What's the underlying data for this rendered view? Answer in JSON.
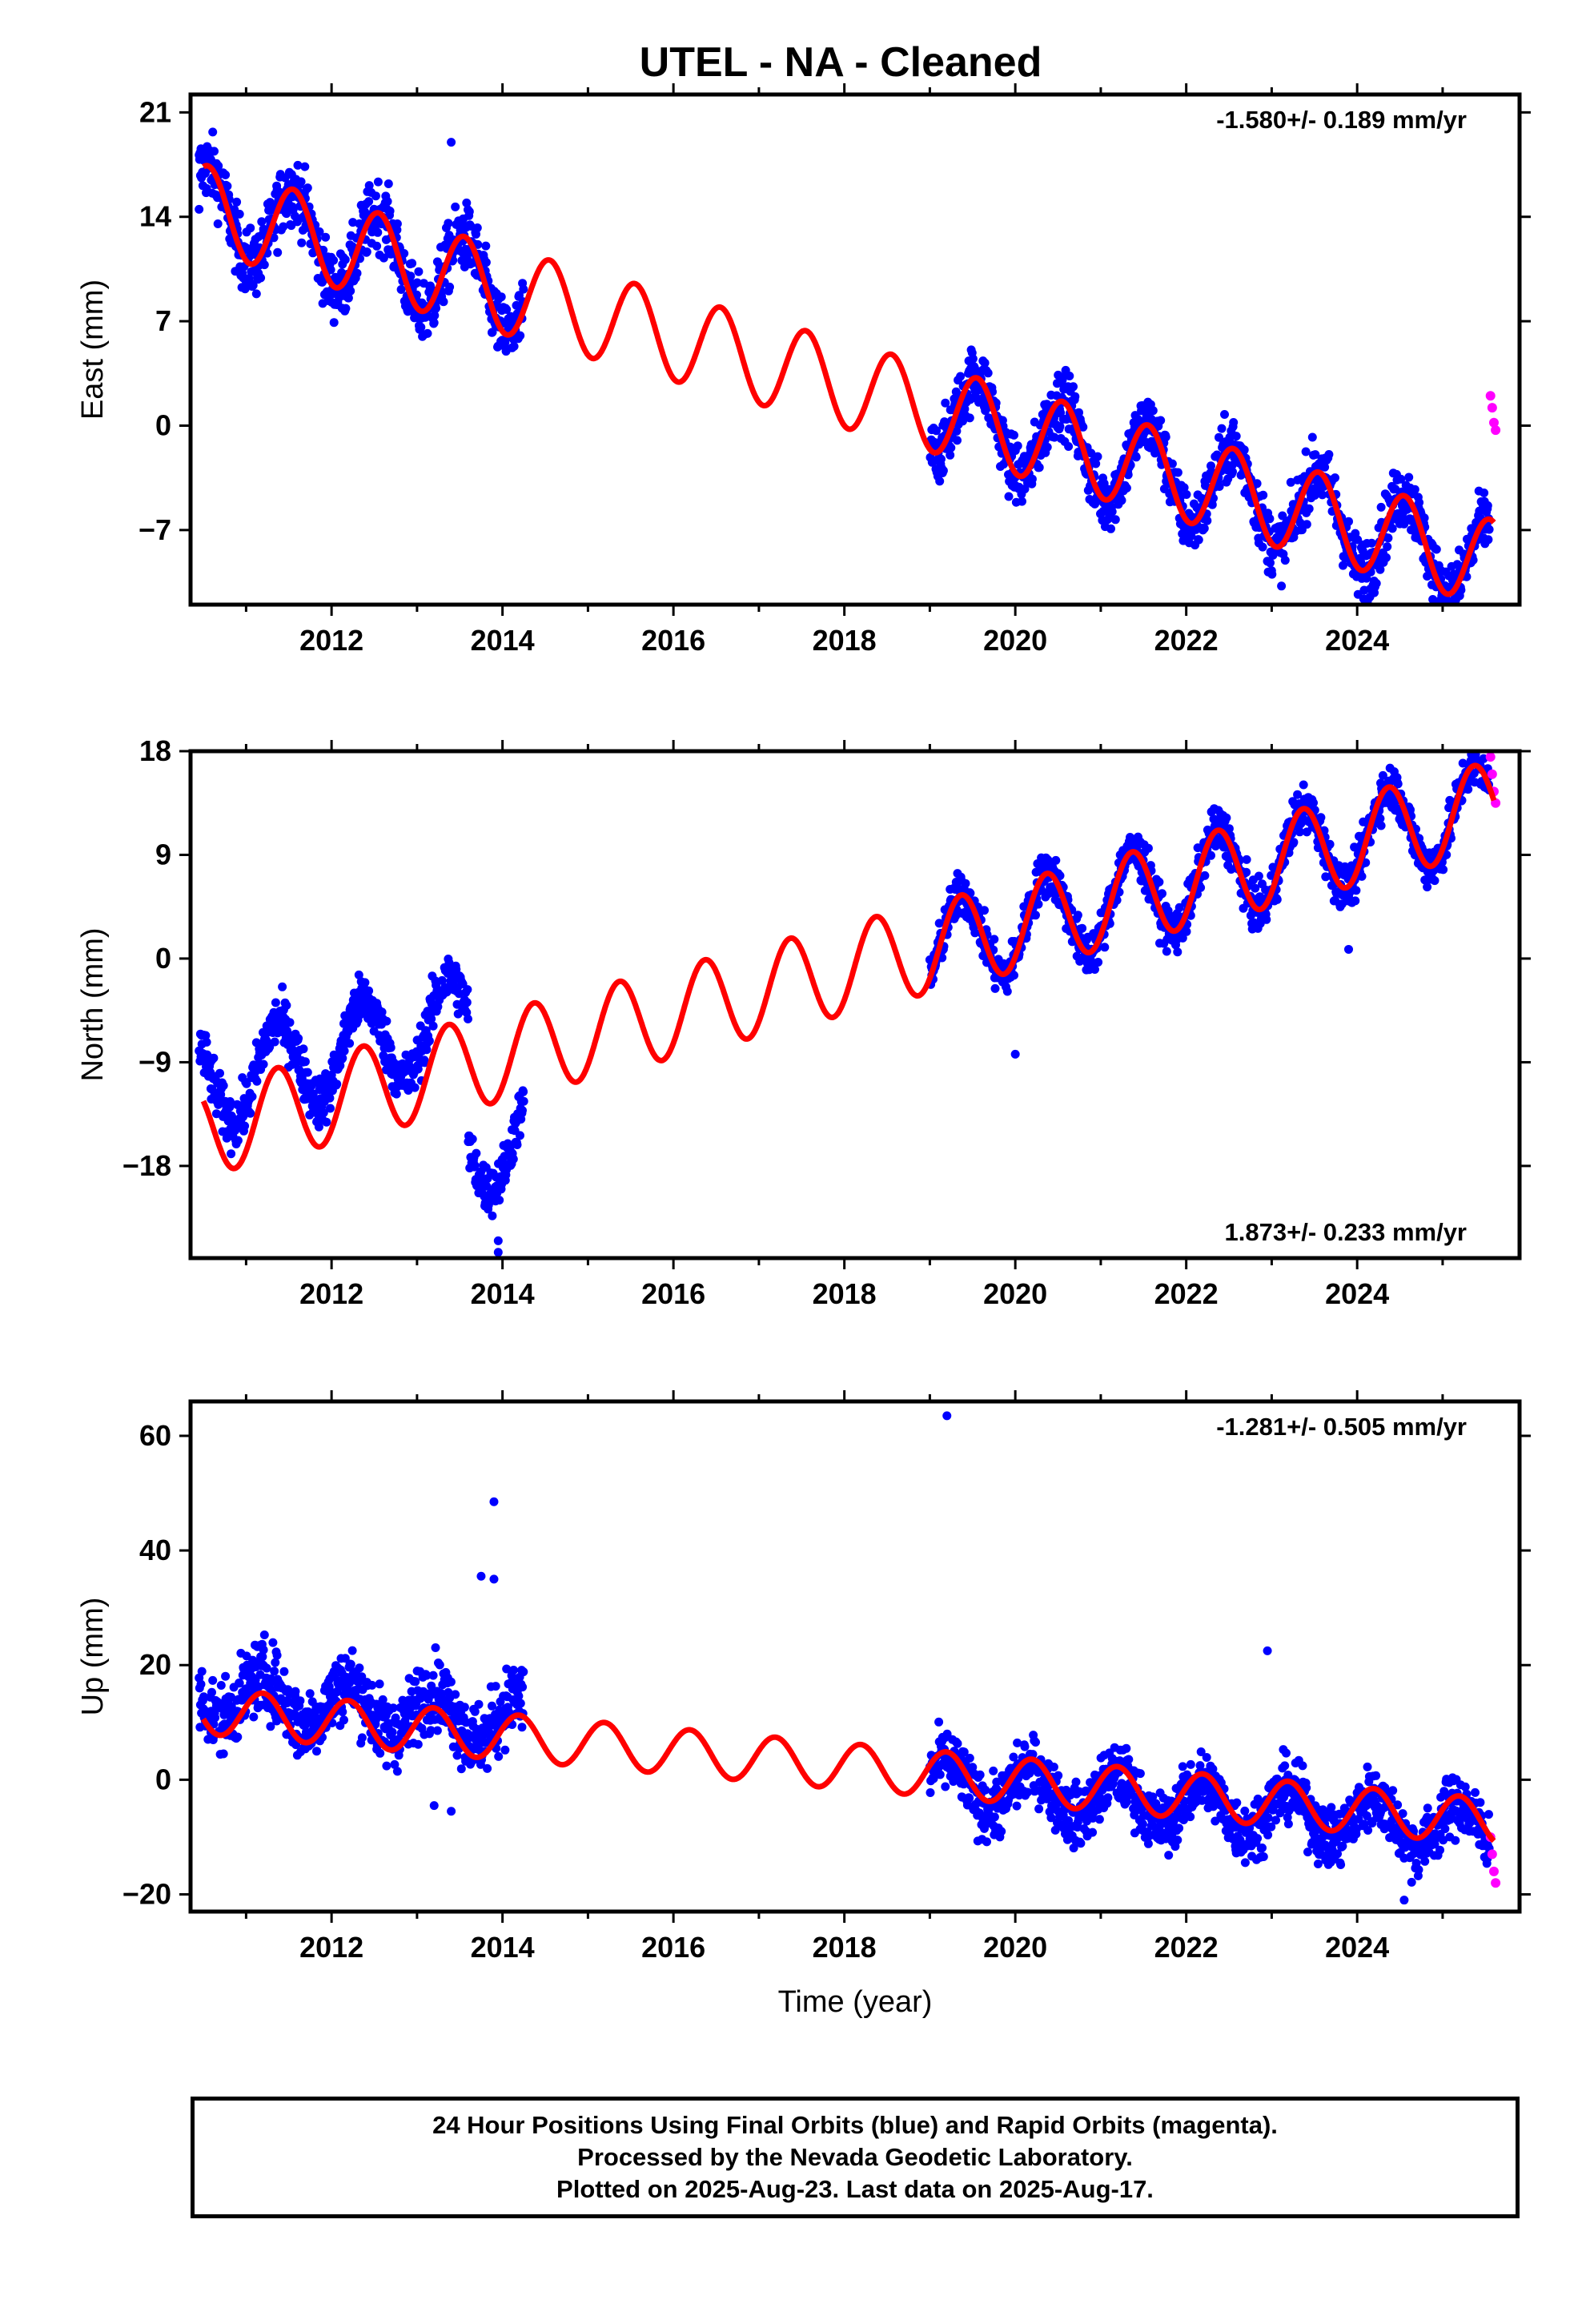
{
  "title": "UTEL  - NA - Cleaned",
  "colors": {
    "final": "#0000ff",
    "rapid": "#ff00ff",
    "model": "#ff0000",
    "axis": "#000000"
  },
  "chart_data": [
    {
      "type": "scatter",
      "panel": "east",
      "ylabel": "East (mm)",
      "xlabel": "",
      "xlim": [
        2010.35,
        2025.9
      ],
      "ylim": [
        -12,
        22.2
      ],
      "yticks": [
        21,
        14,
        7,
        0,
        -7
      ],
      "xticks": [
        2012,
        2014,
        2016,
        2018,
        2020,
        2022,
        2024
      ],
      "rate_label": "-1.580+/- 0.189 mm/yr",
      "rate_position": "top-right",
      "model": {
        "name": "model",
        "offset": 14.6,
        "t0": 2010.5,
        "rate": -1.58,
        "amplitude": 2.9,
        "phase": 1.25,
        "step_at": 2019.0,
        "step": 0.0
      },
      "segments": [
        {
          "series": "final",
          "start": 2010.45,
          "end": 2014.25,
          "scatter": 1.6
        },
        {
          "series": "final",
          "start": 2019.0,
          "end": 2025.55,
          "scatter": 1.5
        }
      ],
      "rapid_points": {
        "x": [
          2025.56,
          2025.58,
          2025.6,
          2025.62
        ],
        "y": [
          2.0,
          1.2,
          0.2,
          -0.3
        ]
      },
      "outliers": {
        "x": [
          2010.45,
          2013.4,
          2024.2,
          2025.2
        ],
        "y": [
          14.5,
          19.0,
          -11.2,
          -11.4
        ]
      }
    },
    {
      "type": "scatter",
      "panel": "north",
      "ylabel": "North (mm)",
      "xlabel": "",
      "xlim": [
        2010.35,
        2025.9
      ],
      "ylim": [
        -26,
        18
      ],
      "yticks": [
        18,
        9,
        0,
        -9,
        -18
      ],
      "xticks": [
        2012,
        2014,
        2016,
        2018,
        2020,
        2022,
        2024
      ],
      "rate_label": "1.873+/- 0.233 mm/yr",
      "rate_position": "bottom-right",
      "model": {
        "name": "model",
        "offset": -15.0,
        "t0": 2010.5,
        "rate": 1.873,
        "amplitude": 3.9,
        "phase": 2.4,
        "step_at": 2019.0,
        "step": 0.0
      },
      "segments": [
        {
          "series": "final",
          "start": 2010.45,
          "end": 2013.6,
          "scatter": 1.6,
          "shift": 4.0
        },
        {
          "series": "final",
          "start": 2013.6,
          "end": 2014.25,
          "scatter": 1.5,
          "shift": -7.5
        },
        {
          "series": "final",
          "start": 2019.0,
          "end": 2025.55,
          "scatter": 1.4,
          "shift": 0.0
        }
      ],
      "rapid_points": {
        "x": [
          2025.56,
          2025.58,
          2025.6,
          2025.62
        ],
        "y": [
          17.5,
          16.0,
          14.5,
          13.5
        ]
      },
      "outliers": {
        "x": [
          2013.95,
          2013.95,
          2020.0,
          2023.9
        ],
        "y": [
          -24.5,
          -25.5,
          -8.3,
          0.8
        ]
      }
    },
    {
      "type": "scatter",
      "panel": "up",
      "ylabel": "Up (mm)",
      "xlabel": "Time (year)",
      "xlim": [
        2010.35,
        2025.9
      ],
      "ylim": [
        -23,
        66
      ],
      "yticks": [
        60,
        40,
        20,
        0,
        -20
      ],
      "xticks": [
        2012,
        2014,
        2016,
        2018,
        2020,
        2022,
        2024
      ],
      "rate_label": "-1.281+/- 0.505 mm/yr",
      "rate_position": "top-right",
      "model": {
        "name": "model",
        "offset": 12.0,
        "t0": 2010.5,
        "rate": -1.281,
        "amplitude": 4.0,
        "phase": 3.5,
        "step_at": 2019.0,
        "step": 0.0
      },
      "segments": [
        {
          "series": "final",
          "start": 2010.45,
          "end": 2014.25,
          "scatter": 4.5,
          "shift": 3.0
        },
        {
          "series": "final",
          "start": 2019.0,
          "end": 2025.55,
          "scatter": 3.8,
          "shift": -1.5
        }
      ],
      "rapid_points": {
        "x": [
          2025.56,
          2025.58,
          2025.6,
          2025.62
        ],
        "y": [
          -10.0,
          -13.0,
          -16.0,
          -18.0
        ]
      },
      "outliers": {
        "x": [
          2013.9,
          2013.75,
          2013.9,
          2019.2,
          2022.95,
          2024.55,
          2013.4,
          2013.2
        ],
        "y": [
          48.5,
          35.5,
          35.0,
          63.5,
          22.5,
          -21.0,
          -5.5,
          -4.5
        ]
      }
    }
  ],
  "footer": {
    "line1": "24 Hour Positions Using Final Orbits (blue) and Rapid Orbits (magenta).",
    "line2": "Processed by the Nevada Geodetic Laboratory.",
    "line3": "Plotted on 2025-Aug-23. Last data on 2025-Aug-17."
  }
}
